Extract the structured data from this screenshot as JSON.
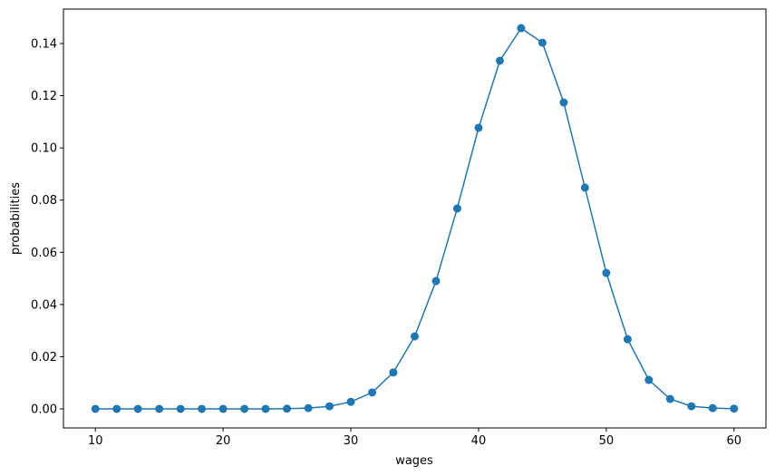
{
  "chart_data": {
    "type": "line",
    "title": "",
    "xlabel": "wages",
    "ylabel": "probabilities",
    "xlim": [
      7.5,
      62.5
    ],
    "ylim": [
      -0.0073,
      0.1532
    ],
    "grid": false,
    "markers": true,
    "color": "#1f77b4",
    "x_ticks": [
      10,
      20,
      30,
      40,
      50,
      60
    ],
    "x_tick_labels": [
      "10",
      "20",
      "30",
      "40",
      "50",
      "60"
    ],
    "y_ticks": [
      0,
      0.02,
      0.04,
      0.06,
      0.08,
      0.1,
      0.12,
      0.14
    ],
    "y_tick_labels": [
      "0.00",
      "0.02",
      "0.04",
      "0.06",
      "0.08",
      "0.10",
      "0.12",
      "0.14"
    ],
    "x": [
      10,
      11.67,
      13.33,
      15,
      16.67,
      18.33,
      20,
      21.67,
      23.33,
      25,
      26.67,
      28.33,
      30,
      31.67,
      33.33,
      35,
      36.67,
      38.33,
      40,
      41.67,
      43.33,
      45,
      46.67,
      48.33,
      50,
      51.67,
      53.33,
      55,
      56.67,
      58.33,
      60
    ],
    "y": [
      0,
      0,
      0,
      0,
      0,
      0,
      0,
      0,
      0,
      0.0001,
      0.0003,
      0.001,
      0.0027,
      0.0063,
      0.014,
      0.0278,
      0.049,
      0.0768,
      0.1077,
      0.1334,
      0.1459,
      0.1403,
      0.1174,
      0.0848,
      0.0521,
      0.0267,
      0.0111,
      0.0038,
      0.001,
      0.0003,
      0.0001
    ]
  }
}
